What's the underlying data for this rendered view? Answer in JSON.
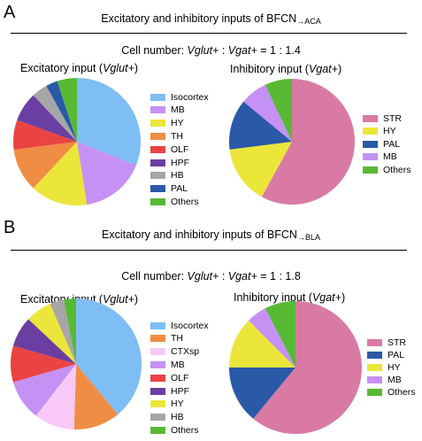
{
  "panels": [
    {
      "letter": "A",
      "header_main": "Excitatory and inhibitory inputs of BFCN",
      "header_sub": "→ACA",
      "ratio": {
        "prefix": "Cell number: ",
        "a": "Vglut+",
        "sep": " : ",
        "b": "Vgat+",
        "suffix": " = 1 : 1.4"
      },
      "excit_title_prefix": "Excitatory input (",
      "excit_title_italic": "Vglut+",
      "excit_title_suffix": ")",
      "inhib_title_prefix": "Inhibitory input (",
      "inhib_title_italic": "Vgat+",
      "inhib_title_suffix": ")"
    },
    {
      "letter": "B",
      "header_main": "Excitatory and inhibitory inputs of BFCN",
      "header_sub": "→BLA",
      "ratio": {
        "prefix": "Cell number: ",
        "a": "Vglut+",
        "sep": " : ",
        "b": "Vgat+",
        "suffix": " = 1 : 1.8"
      },
      "excit_title_prefix": "Excitatory input (",
      "excit_title_italic": "Vglut+",
      "excit_title_suffix": ")",
      "inhib_title_prefix": "Inhibitory input (",
      "inhib_title_italic": "Vgat+",
      "inhib_title_suffix": ")"
    }
  ],
  "colors": {
    "Isocortex": "#7fbdf5",
    "MB": "#c591f5",
    "HY": "#ece63a",
    "TH": "#f08d45",
    "OLF": "#ea4343",
    "HPF": "#6b3fa1",
    "HB": "#a6a6a6",
    "PAL": "#2a59a7",
    "Others": "#58b934",
    "STR": "#d97aa5",
    "CTXsp": "#f8c9f7"
  },
  "chart_data": [
    {
      "type": "pie",
      "panel": "A",
      "title": "Excitatory input (Vglut+)",
      "slices": [
        {
          "label": "Isocortex",
          "value": 31.0
        },
        {
          "label": "MB",
          "value": 16.5
        },
        {
          "label": "HY",
          "value": 14.5
        },
        {
          "label": "TH",
          "value": 11.0
        },
        {
          "label": "OLF",
          "value": 7.5
        },
        {
          "label": "HPF",
          "value": 7.5
        },
        {
          "label": "HB",
          "value": 4.0
        },
        {
          "label": "PAL",
          "value": 3.0
        },
        {
          "label": "Others",
          "value": 5.0
        }
      ]
    },
    {
      "type": "pie",
      "panel": "A",
      "title": "Inhibitory input (Vgat+)",
      "slices": [
        {
          "label": "STR",
          "value": 58.0
        },
        {
          "label": "HY",
          "value": 15.0
        },
        {
          "label": "PAL",
          "value": 13.0
        },
        {
          "label": "MB",
          "value": 7.0
        },
        {
          "label": "Others",
          "value": 7.0
        }
      ]
    },
    {
      "type": "pie",
      "panel": "B",
      "title": "Excitatory input (Vglut+)",
      "slices": [
        {
          "label": "Isocortex",
          "value": 39.0
        },
        {
          "label": "TH",
          "value": 11.5
        },
        {
          "label": "CTXsp",
          "value": 10.0
        },
        {
          "label": "MB",
          "value": 10.0
        },
        {
          "label": "OLF",
          "value": 9.0
        },
        {
          "label": "HPF",
          "value": 7.5
        },
        {
          "label": "HY",
          "value": 6.5
        },
        {
          "label": "HB",
          "value": 3.5
        },
        {
          "label": "Others",
          "value": 3.0
        }
      ]
    },
    {
      "type": "pie",
      "panel": "B",
      "title": "Inhibitory input (Vgat+)",
      "slices": [
        {
          "label": "STR",
          "value": 61.0
        },
        {
          "label": "PAL",
          "value": 14.0
        },
        {
          "label": "HY",
          "value": 12.5
        },
        {
          "label": "MB",
          "value": 5.0
        },
        {
          "label": "Others",
          "value": 7.5
        }
      ]
    }
  ]
}
